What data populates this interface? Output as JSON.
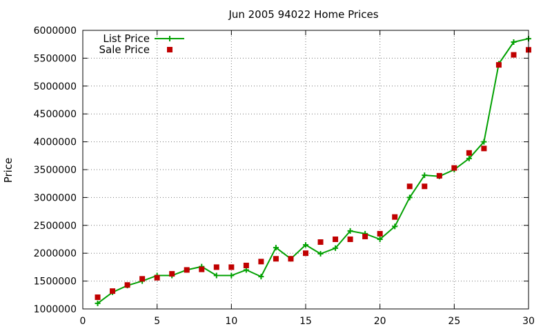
{
  "chart_data": {
    "type": "line",
    "title": "Jun 2005 94022 Home Prices",
    "xlabel": "",
    "ylabel": "Price",
    "xlim": [
      0,
      30
    ],
    "ylim": [
      1000000,
      6000000
    ],
    "xticks": [
      0,
      5,
      10,
      15,
      20,
      25,
      30
    ],
    "yticks": [
      1000000,
      1500000,
      2000000,
      2500000,
      3000000,
      3500000,
      4000000,
      4500000,
      5000000,
      5500000,
      6000000
    ],
    "grid": true,
    "legend_position": "top-left",
    "series": [
      {
        "name": "List Price",
        "style": "line+plus",
        "color": "#00a000",
        "x": [
          1,
          2,
          3,
          4,
          5,
          6,
          7,
          8,
          9,
          10,
          11,
          12,
          13,
          14,
          15,
          16,
          17,
          18,
          19,
          20,
          21,
          22,
          23,
          24,
          25,
          26,
          27,
          28,
          29,
          30
        ],
        "y": [
          1100000,
          1300000,
          1420000,
          1500000,
          1600000,
          1600000,
          1700000,
          1760000,
          1600000,
          1600000,
          1700000,
          1580000,
          2100000,
          1900000,
          2150000,
          1990000,
          2090000,
          2400000,
          2350000,
          2250000,
          2480000,
          3000000,
          3400000,
          3380000,
          3500000,
          3700000,
          4000000,
          5400000,
          5790000,
          5850000
        ]
      },
      {
        "name": "Sale Price",
        "style": "square-points",
        "color": "#c00000",
        "x": [
          1,
          2,
          3,
          4,
          5,
          6,
          7,
          8,
          9,
          10,
          11,
          12,
          13,
          14,
          15,
          16,
          17,
          18,
          19,
          20,
          21,
          22,
          23,
          24,
          25,
          26,
          27,
          28,
          29,
          30
        ],
        "y": [
          1210000,
          1320000,
          1430000,
          1540000,
          1560000,
          1630000,
          1700000,
          1710000,
          1750000,
          1750000,
          1780000,
          1850000,
          1900000,
          1900000,
          2000000,
          2200000,
          2250000,
          2250000,
          2300000,
          2350000,
          2650000,
          3200000,
          3200000,
          3390000,
          3530000,
          3800000,
          3880000,
          5380000,
          5560000,
          5650000
        ]
      }
    ]
  }
}
